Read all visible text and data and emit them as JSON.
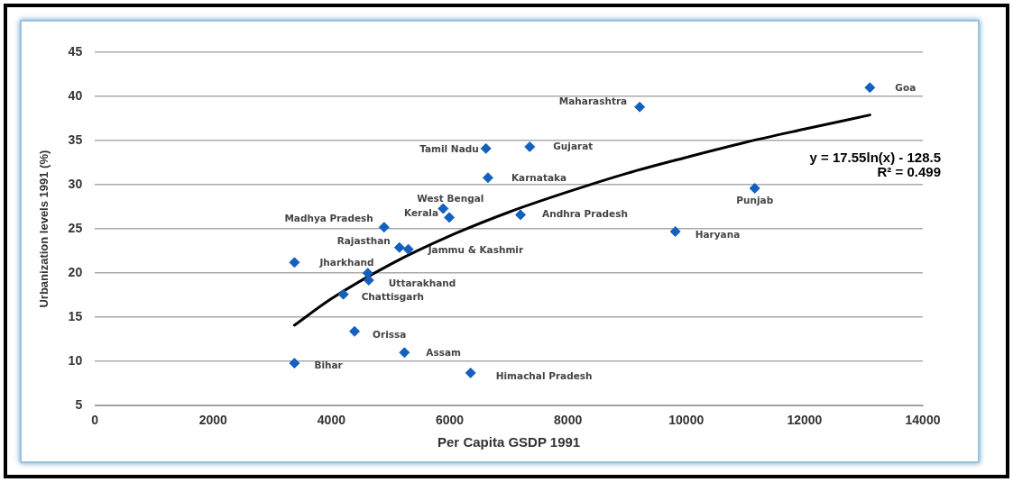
{
  "chart_data": {
    "type": "scatter",
    "xlabel": "Per Capita GSDP 1991",
    "ylabel": "Urbanization levels 1991 (%)",
    "xlim": [
      0,
      14000
    ],
    "xticks": [
      0,
      2000,
      4000,
      6000,
      8000,
      10000,
      12000,
      14000
    ],
    "ylim": [
      5,
      45
    ],
    "yticks": [
      5,
      10,
      15,
      20,
      25,
      30,
      35,
      40,
      45
    ],
    "grid": "y",
    "legend": false,
    "marker": "diamond",
    "series": [
      {
        "type": "scatter",
        "color": "#1560bd",
        "x": [
          13105,
          9213,
          6613,
          7353,
          6647,
          5890,
          5993,
          4891,
          7198,
          11159,
          9816,
          5150,
          5300,
          3375,
          4615,
          4632,
          4202,
          4391,
          5235,
          3375,
          6354
        ],
        "values": [
          41,
          38.8,
          34.1,
          34.3,
          30.8,
          27.3,
          26.3,
          25.2,
          26.6,
          29.6,
          24.7,
          22.9,
          22.7,
          21.2,
          20,
          19.2,
          17.6,
          13.4,
          11,
          9.8,
          8.7
        ]
      },
      {
        "type": "line",
        "color": "#000000",
        "marker": "none",
        "x": [
          3375,
          4000,
          5000,
          6000,
          7000,
          8000,
          9000,
          10000,
          11000,
          12000,
          13105
        ],
        "values": [
          14.1,
          17.1,
          21,
          24.2,
          26.9,
          29.2,
          31.3,
          33.1,
          34.8,
          36.3,
          37.9
        ]
      }
    ],
    "annotations": [
      {
        "text": "Goa",
        "x": 13105,
        "y": 41
      },
      {
        "text": "Maharashtra",
        "x": 9213,
        "y": 38.8
      },
      {
        "text": "Tamil Nadu",
        "x": 6613,
        "y": 34.1
      },
      {
        "text": "Gujarat",
        "x": 7353,
        "y": 34.3
      },
      {
        "text": "Karnataka",
        "x": 6647,
        "y": 30.8
      },
      {
        "text": "West Bengal",
        "x": 5890,
        "y": 27.3
      },
      {
        "text": "Kerala",
        "x": 5993,
        "y": 26.3
      },
      {
        "text": "Madhya Pradesh",
        "x": 4891,
        "y": 25.2
      },
      {
        "text": "Andhra Pradesh",
        "x": 7198,
        "y": 26.6
      },
      {
        "text": "Punjab",
        "x": 11159,
        "y": 29.6
      },
      {
        "text": "Haryana",
        "x": 9816,
        "y": 24.7
      },
      {
        "text": "Rajasthan",
        "x": 5150,
        "y": 22.9
      },
      {
        "text": "Jammu & Kashmir",
        "x": 5300,
        "y": 22.7
      },
      {
        "text": "Jharkhand",
        "x": 3375,
        "y": 21.2
      },
      {
        "text": "Uttarakhand",
        "x": 4632,
        "y": 19.2
      },
      {
        "text": "Chattisgarh",
        "x": 4202,
        "y": 17.6
      },
      {
        "text": "Orissa",
        "x": 4391,
        "y": 13.4
      },
      {
        "text": "Assam",
        "x": 5235,
        "y": 11
      },
      {
        "text": "Bihar",
        "x": 3375,
        "y": 9.8
      },
      {
        "text": "Himachal Pradesh",
        "x": 6354,
        "y": 8.7
      },
      "y = 17.55ln(x) - 128.5",
      "R² = 0.499"
    ]
  }
}
